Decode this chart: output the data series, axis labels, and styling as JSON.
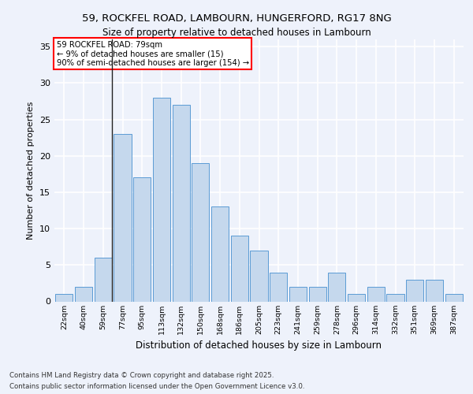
{
  "title_line1": "59, ROCKFEL ROAD, LAMBOURN, HUNGERFORD, RG17 8NG",
  "title_line2": "Size of property relative to detached houses in Lambourn",
  "xlabel": "Distribution of detached houses by size in Lambourn",
  "ylabel": "Number of detached properties",
  "categories": [
    "22sqm",
    "40sqm",
    "59sqm",
    "77sqm",
    "95sqm",
    "113sqm",
    "132sqm",
    "150sqm",
    "168sqm",
    "186sqm",
    "205sqm",
    "223sqm",
    "241sqm",
    "259sqm",
    "278sqm",
    "296sqm",
    "314sqm",
    "332sqm",
    "351sqm",
    "369sqm",
    "387sqm"
  ],
  "values": [
    1,
    2,
    6,
    23,
    17,
    28,
    27,
    19,
    13,
    9,
    7,
    4,
    2,
    2,
    4,
    1,
    2,
    1,
    3,
    3,
    1
  ],
  "bar_color": "#c5d8ed",
  "bar_edge_color": "#5b9bd5",
  "highlight_bar_index": 2,
  "highlight_line_color": "#222222",
  "annotation_text": "59 ROCKFEL ROAD: 79sqm\n← 9% of detached houses are smaller (15)\n90% of semi-detached houses are larger (154) →",
  "annotation_box_color": "white",
  "annotation_box_edge_color": "red",
  "ylim": [
    0,
    36
  ],
  "yticks": [
    0,
    5,
    10,
    15,
    20,
    25,
    30,
    35
  ],
  "background_color": "#eef2fb",
  "grid_color": "white",
  "footer_line1": "Contains HM Land Registry data © Crown copyright and database right 2025.",
  "footer_line2": "Contains public sector information licensed under the Open Government Licence v3.0."
}
